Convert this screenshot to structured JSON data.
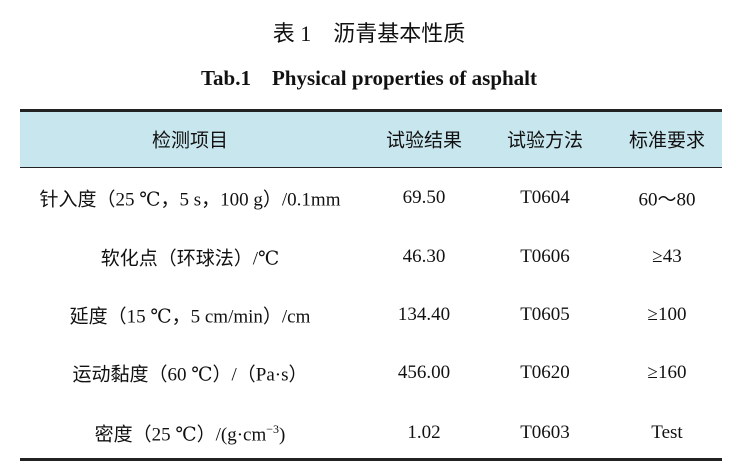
{
  "header": {
    "title": "表 1　沥青基本性质",
    "subtitle": "Tab.1　Physical properties of asphalt"
  },
  "table": {
    "columns": [
      "检测项目",
      "试验结果",
      "试验方法",
      "标准要求"
    ],
    "rows": [
      [
        "针入度（25 ℃，5 s，100 g）/0.1mm",
        "69.50",
        "T0604",
        "60～80"
      ],
      [
        "软化点（环球法）/℃",
        "46.30",
        "T0606",
        "≥43"
      ],
      [
        "延度（15 ℃，5 cm/min）/cm",
        "134.40",
        "T0605",
        "≥100"
      ],
      [
        "运动黏度（60 ℃）/（Pa·s）",
        "456.00",
        "T0620",
        "≥160"
      ],
      [
        {
          "text": "密度（25 ℃）/(g·cm",
          "sup": "−3",
          "tail": ")"
        },
        "1.02",
        "T0603",
        "Test"
      ]
    ]
  }
}
